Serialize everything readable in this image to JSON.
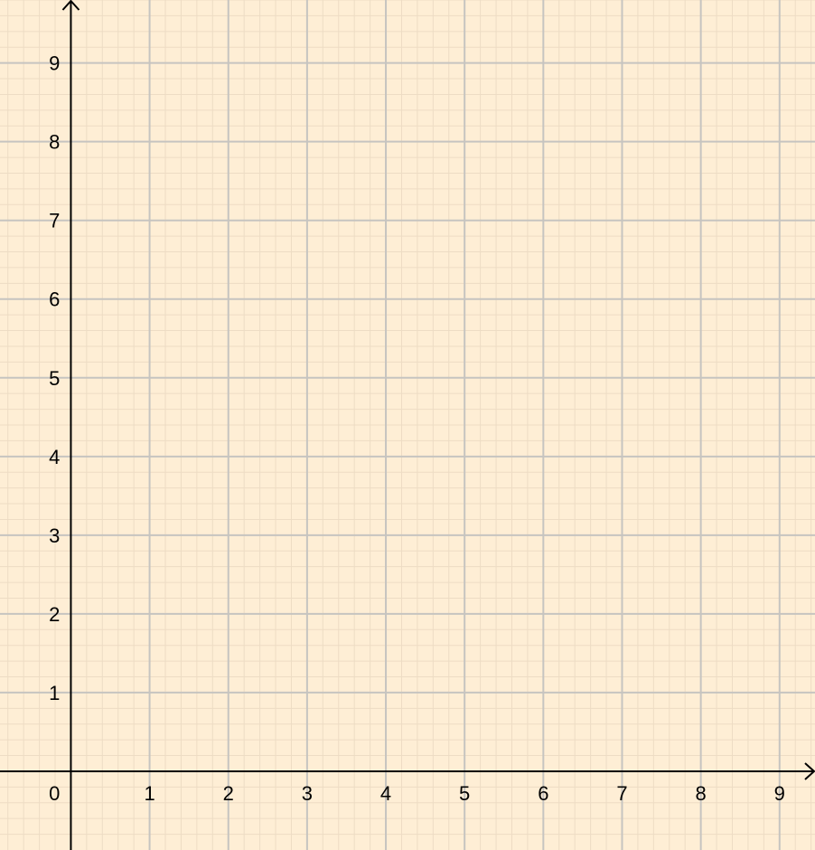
{
  "colors": {
    "background": "#feeed5",
    "minor_grid": "#eddcc4",
    "major_grid": "#c6c4c0",
    "axis": "#000000",
    "text": "#000000"
  },
  "chart_data": {
    "type": "scatter",
    "title": "",
    "xlabel": "",
    "ylabel": "",
    "xlim": [
      -0.9,
      9.45
    ],
    "ylim": [
      -1.0,
      9.8
    ],
    "grid": true,
    "minor_grid_subdivisions": 5,
    "x_ticks": [
      1,
      2,
      3,
      4,
      5,
      6,
      7,
      8,
      9
    ],
    "y_ticks": [
      1,
      2,
      3,
      4,
      5,
      6,
      7,
      8,
      9
    ],
    "x_tick_labels": [
      "1",
      "2",
      "3",
      "4",
      "5",
      "6",
      "7",
      "8",
      "9"
    ],
    "y_tick_labels": [
      "1",
      "2",
      "3",
      "4",
      "5",
      "6",
      "7",
      "8",
      "9"
    ],
    "origin_label": "0",
    "series": []
  }
}
